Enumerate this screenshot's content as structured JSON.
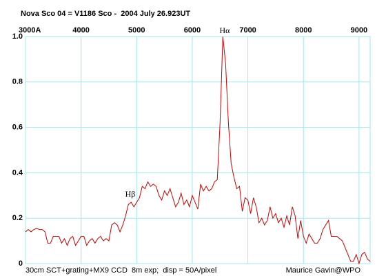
{
  "chart_data": {
    "type": "line",
    "title": "Nova Sco 04 = V1186 Sco -  2004 July 26.923UT",
    "footer_left": "30cm SCT+grating+MX9 CCD  8m exp;  disp = 50A/pixel",
    "footer_right": "Maurice Gavin@WPO",
    "annotations": [
      "Hβ",
      "Hα"
    ],
    "color": "#cc0000",
    "grid": true,
    "xlim": [
      3000,
      9200
    ],
    "xticks": [
      {
        "value": 3000,
        "label": "3000A"
      },
      4000,
      5000,
      6000,
      7000,
      8000,
      9000
    ],
    "ylim": [
      0,
      1
    ],
    "yticks": [
      0,
      0.2,
      0.4,
      0.6,
      0.8,
      {
        "value": 1,
        "label": "1.0"
      }
    ],
    "x": [
      3000,
      3050,
      3100,
      3150,
      3200,
      3250,
      3300,
      3350,
      3400,
      3450,
      3500,
      3550,
      3600,
      3650,
      3700,
      3750,
      3800,
      3850,
      3900,
      3950,
      4000,
      4050,
      4100,
      4150,
      4200,
      4250,
      4300,
      4350,
      4400,
      4450,
      4500,
      4550,
      4600,
      4650,
      4700,
      4750,
      4800,
      4850,
      4900,
      4950,
      5000,
      5050,
      5100,
      5150,
      5200,
      5250,
      5300,
      5350,
      5400,
      5450,
      5500,
      5550,
      5600,
      5650,
      5700,
      5750,
      5800,
      5850,
      5900,
      5950,
      6000,
      6050,
      6100,
      6150,
      6200,
      6250,
      6300,
      6350,
      6400,
      6450,
      6500,
      6550,
      6600,
      6650,
      6700,
      6750,
      6800,
      6850,
      6900,
      6950,
      7000,
      7050,
      7100,
      7150,
      7200,
      7250,
      7300,
      7350,
      7400,
      7450,
      7500,
      7550,
      7600,
      7650,
      7700,
      7750,
      7800,
      7850,
      7900,
      7950,
      8000,
      8050,
      8100,
      8150,
      8200,
      8250,
      8300,
      8350,
      8400,
      8450,
      8500,
      8550,
      8600,
      8650,
      8700,
      8750,
      8800,
      8850,
      8900,
      8950,
      9000,
      9050,
      9100,
      9150,
      9200
    ],
    "values": [
      0.14,
      0.15,
      0.14,
      0.15,
      0.155,
      0.15,
      0.15,
      0.14,
      0.09,
      0.09,
      0.12,
      0.12,
      0.12,
      0.09,
      0.11,
      0.08,
      0.11,
      0.12,
      0.08,
      0.1,
      0.12,
      0.12,
      0.08,
      0.1,
      0.11,
      0.09,
      0.11,
      0.12,
      0.1,
      0.11,
      0.1,
      0.17,
      0.18,
      0.17,
      0.14,
      0.17,
      0.21,
      0.26,
      0.27,
      0.25,
      0.27,
      0.29,
      0.34,
      0.33,
      0.36,
      0.34,
      0.35,
      0.34,
      0.3,
      0.28,
      0.32,
      0.3,
      0.33,
      0.29,
      0.25,
      0.27,
      0.31,
      0.26,
      0.28,
      0.25,
      0.3,
      0.27,
      0.24,
      0.35,
      0.32,
      0.34,
      0.32,
      0.33,
      0.36,
      0.37,
      0.62,
      1.0,
      0.88,
      0.62,
      0.44,
      0.38,
      0.33,
      0.34,
      0.23,
      0.29,
      0.28,
      0.22,
      0.29,
      0.25,
      0.18,
      0.2,
      0.17,
      0.19,
      0.25,
      0.2,
      0.22,
      0.18,
      0.2,
      0.16,
      0.21,
      0.17,
      0.25,
      0.21,
      0.11,
      0.19,
      0.12,
      0.09,
      0.13,
      0.11,
      0.09,
      0.09,
      0.11,
      0.15,
      0.17,
      0.19,
      0.12,
      0.12,
      0.12,
      0.11,
      0.1,
      0.07,
      0.04,
      0.01,
      0.01,
      0.04,
      0.0,
      0.04,
      0.05,
      0.02,
      0.01
    ]
  }
}
